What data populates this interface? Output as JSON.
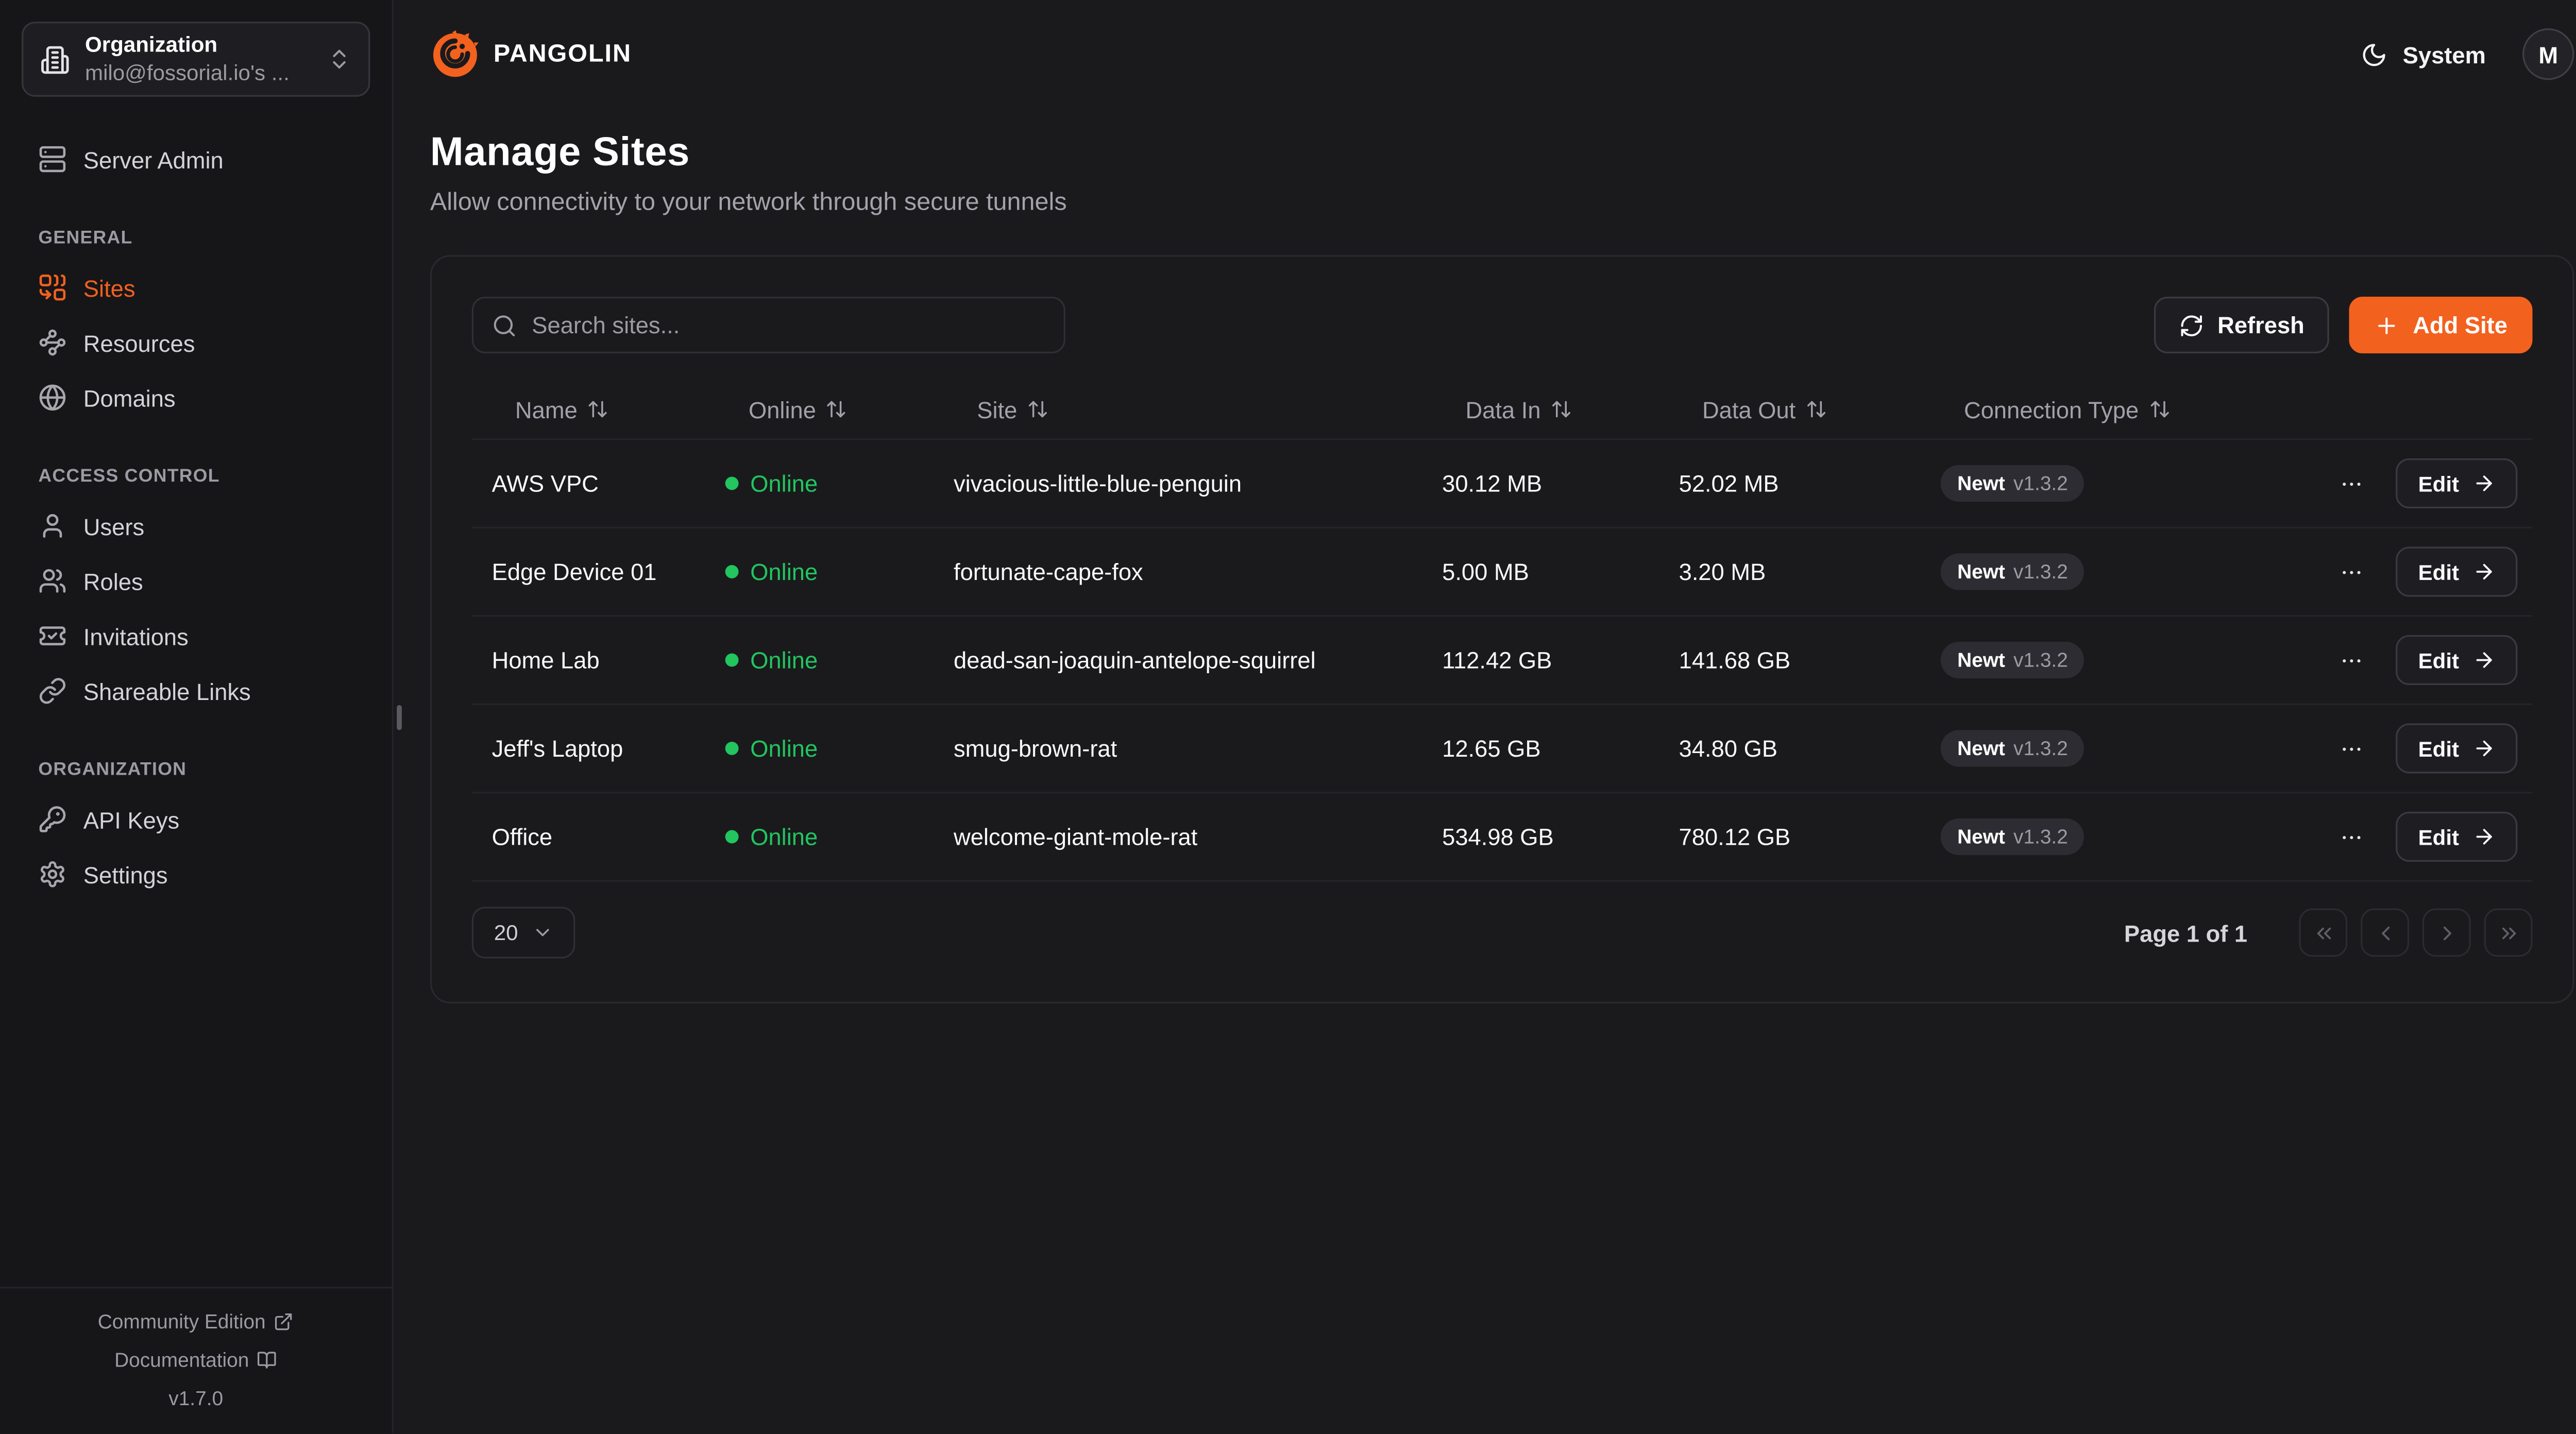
{
  "brand": {
    "name": "PANGOLIN",
    "accent_color": "#F3611E"
  },
  "org_selector": {
    "label": "Organization",
    "value": "milo@fossorial.io's ...",
    "icon": "building-icon"
  },
  "sidebar": {
    "admin_item": {
      "label": "Server Admin",
      "icon": "server-icon"
    },
    "sections": [
      {
        "title": "GENERAL",
        "items": [
          {
            "label": "Sites",
            "icon": "combine-icon",
            "active": true
          },
          {
            "label": "Resources",
            "icon": "waypoints-icon",
            "active": false
          },
          {
            "label": "Domains",
            "icon": "globe-icon",
            "active": false
          }
        ]
      },
      {
        "title": "ACCESS CONTROL",
        "items": [
          {
            "label": "Users",
            "icon": "user-icon",
            "active": false
          },
          {
            "label": "Roles",
            "icon": "users-icon",
            "active": false
          },
          {
            "label": "Invitations",
            "icon": "ticket-check-icon",
            "active": false
          },
          {
            "label": "Shareable Links",
            "icon": "link-icon",
            "active": false
          }
        ]
      },
      {
        "title": "ORGANIZATION",
        "items": [
          {
            "label": "API Keys",
            "icon": "key-icon",
            "active": false
          },
          {
            "label": "Settings",
            "icon": "gear-icon",
            "active": false
          }
        ]
      }
    ],
    "footer": {
      "community_label": "Community Edition",
      "documentation_label": "Documentation",
      "version": "v1.7.0"
    }
  },
  "header": {
    "theme_label": "System",
    "avatar_initial": "M"
  },
  "page": {
    "title": "Manage Sites",
    "subtitle": "Allow connectivity to your network through secure tunnels"
  },
  "toolbar": {
    "search_placeholder": "Search sites...",
    "refresh_label": "Refresh",
    "add_site_label": "Add Site"
  },
  "table": {
    "columns": [
      "Name",
      "Online",
      "Site",
      "Data In",
      "Data Out",
      "Connection Type"
    ],
    "rows": [
      {
        "name": "AWS VPC",
        "status": "Online",
        "site": "vivacious-little-blue-penguin",
        "data_in": "30.12 MB",
        "data_out": "52.02 MB",
        "conn_type": "Newt",
        "conn_version": "v1.3.2",
        "edit_label": "Edit"
      },
      {
        "name": "Edge Device 01",
        "status": "Online",
        "site": "fortunate-cape-fox",
        "data_in": "5.00 MB",
        "data_out": "3.20 MB",
        "conn_type": "Newt",
        "conn_version": "v1.3.2",
        "edit_label": "Edit"
      },
      {
        "name": "Home Lab",
        "status": "Online",
        "site": "dead-san-joaquin-antelope-squirrel",
        "data_in": "112.42 GB",
        "data_out": "141.68 GB",
        "conn_type": "Newt",
        "conn_version": "v1.3.2",
        "edit_label": "Edit"
      },
      {
        "name": "Jeff's Laptop",
        "status": "Online",
        "site": "smug-brown-rat",
        "data_in": "12.65 GB",
        "data_out": "34.80 GB",
        "conn_type": "Newt",
        "conn_version": "v1.3.2",
        "edit_label": "Edit"
      },
      {
        "name": "Office",
        "status": "Online",
        "site": "welcome-giant-mole-rat",
        "data_in": "534.98 GB",
        "data_out": "780.12 GB",
        "conn_type": "Newt",
        "conn_version": "v1.3.2",
        "edit_label": "Edit"
      }
    ]
  },
  "pagination": {
    "page_size": "20",
    "status": "Page 1 of 1"
  },
  "colors": {
    "accent": "#F3611E",
    "online_green": "#22C55E"
  },
  "icons": {
    "building-icon": "organization building",
    "chevrons-up-down-icon": "selector chevrons",
    "server-icon": "server stack",
    "combine-icon": "sites tunnels",
    "waypoints-icon": "resources network",
    "globe-icon": "domains globe",
    "user-icon": "single user",
    "users-icon": "multiple users",
    "ticket-check-icon": "invitation ticket with check",
    "link-icon": "chain link",
    "key-icon": "round key",
    "gear-icon": "settings gear",
    "moon-icon": "dark theme moon",
    "search-icon": "magnifier",
    "refresh-icon": "circular arrows",
    "plus-icon": "plus sign",
    "arrow-up-down-icon": "sort arrows",
    "ellipsis-icon": "row menu dots",
    "arrow-right-icon": "edit arrow",
    "external-link-icon": "external link",
    "book-open-icon": "documentation book",
    "chevron-down-icon": "select chevron",
    "chevrons-left-icon": "first page",
    "chevron-left-icon": "previous page",
    "chevron-right-icon": "next page",
    "chevrons-right-icon": "last page"
  }
}
